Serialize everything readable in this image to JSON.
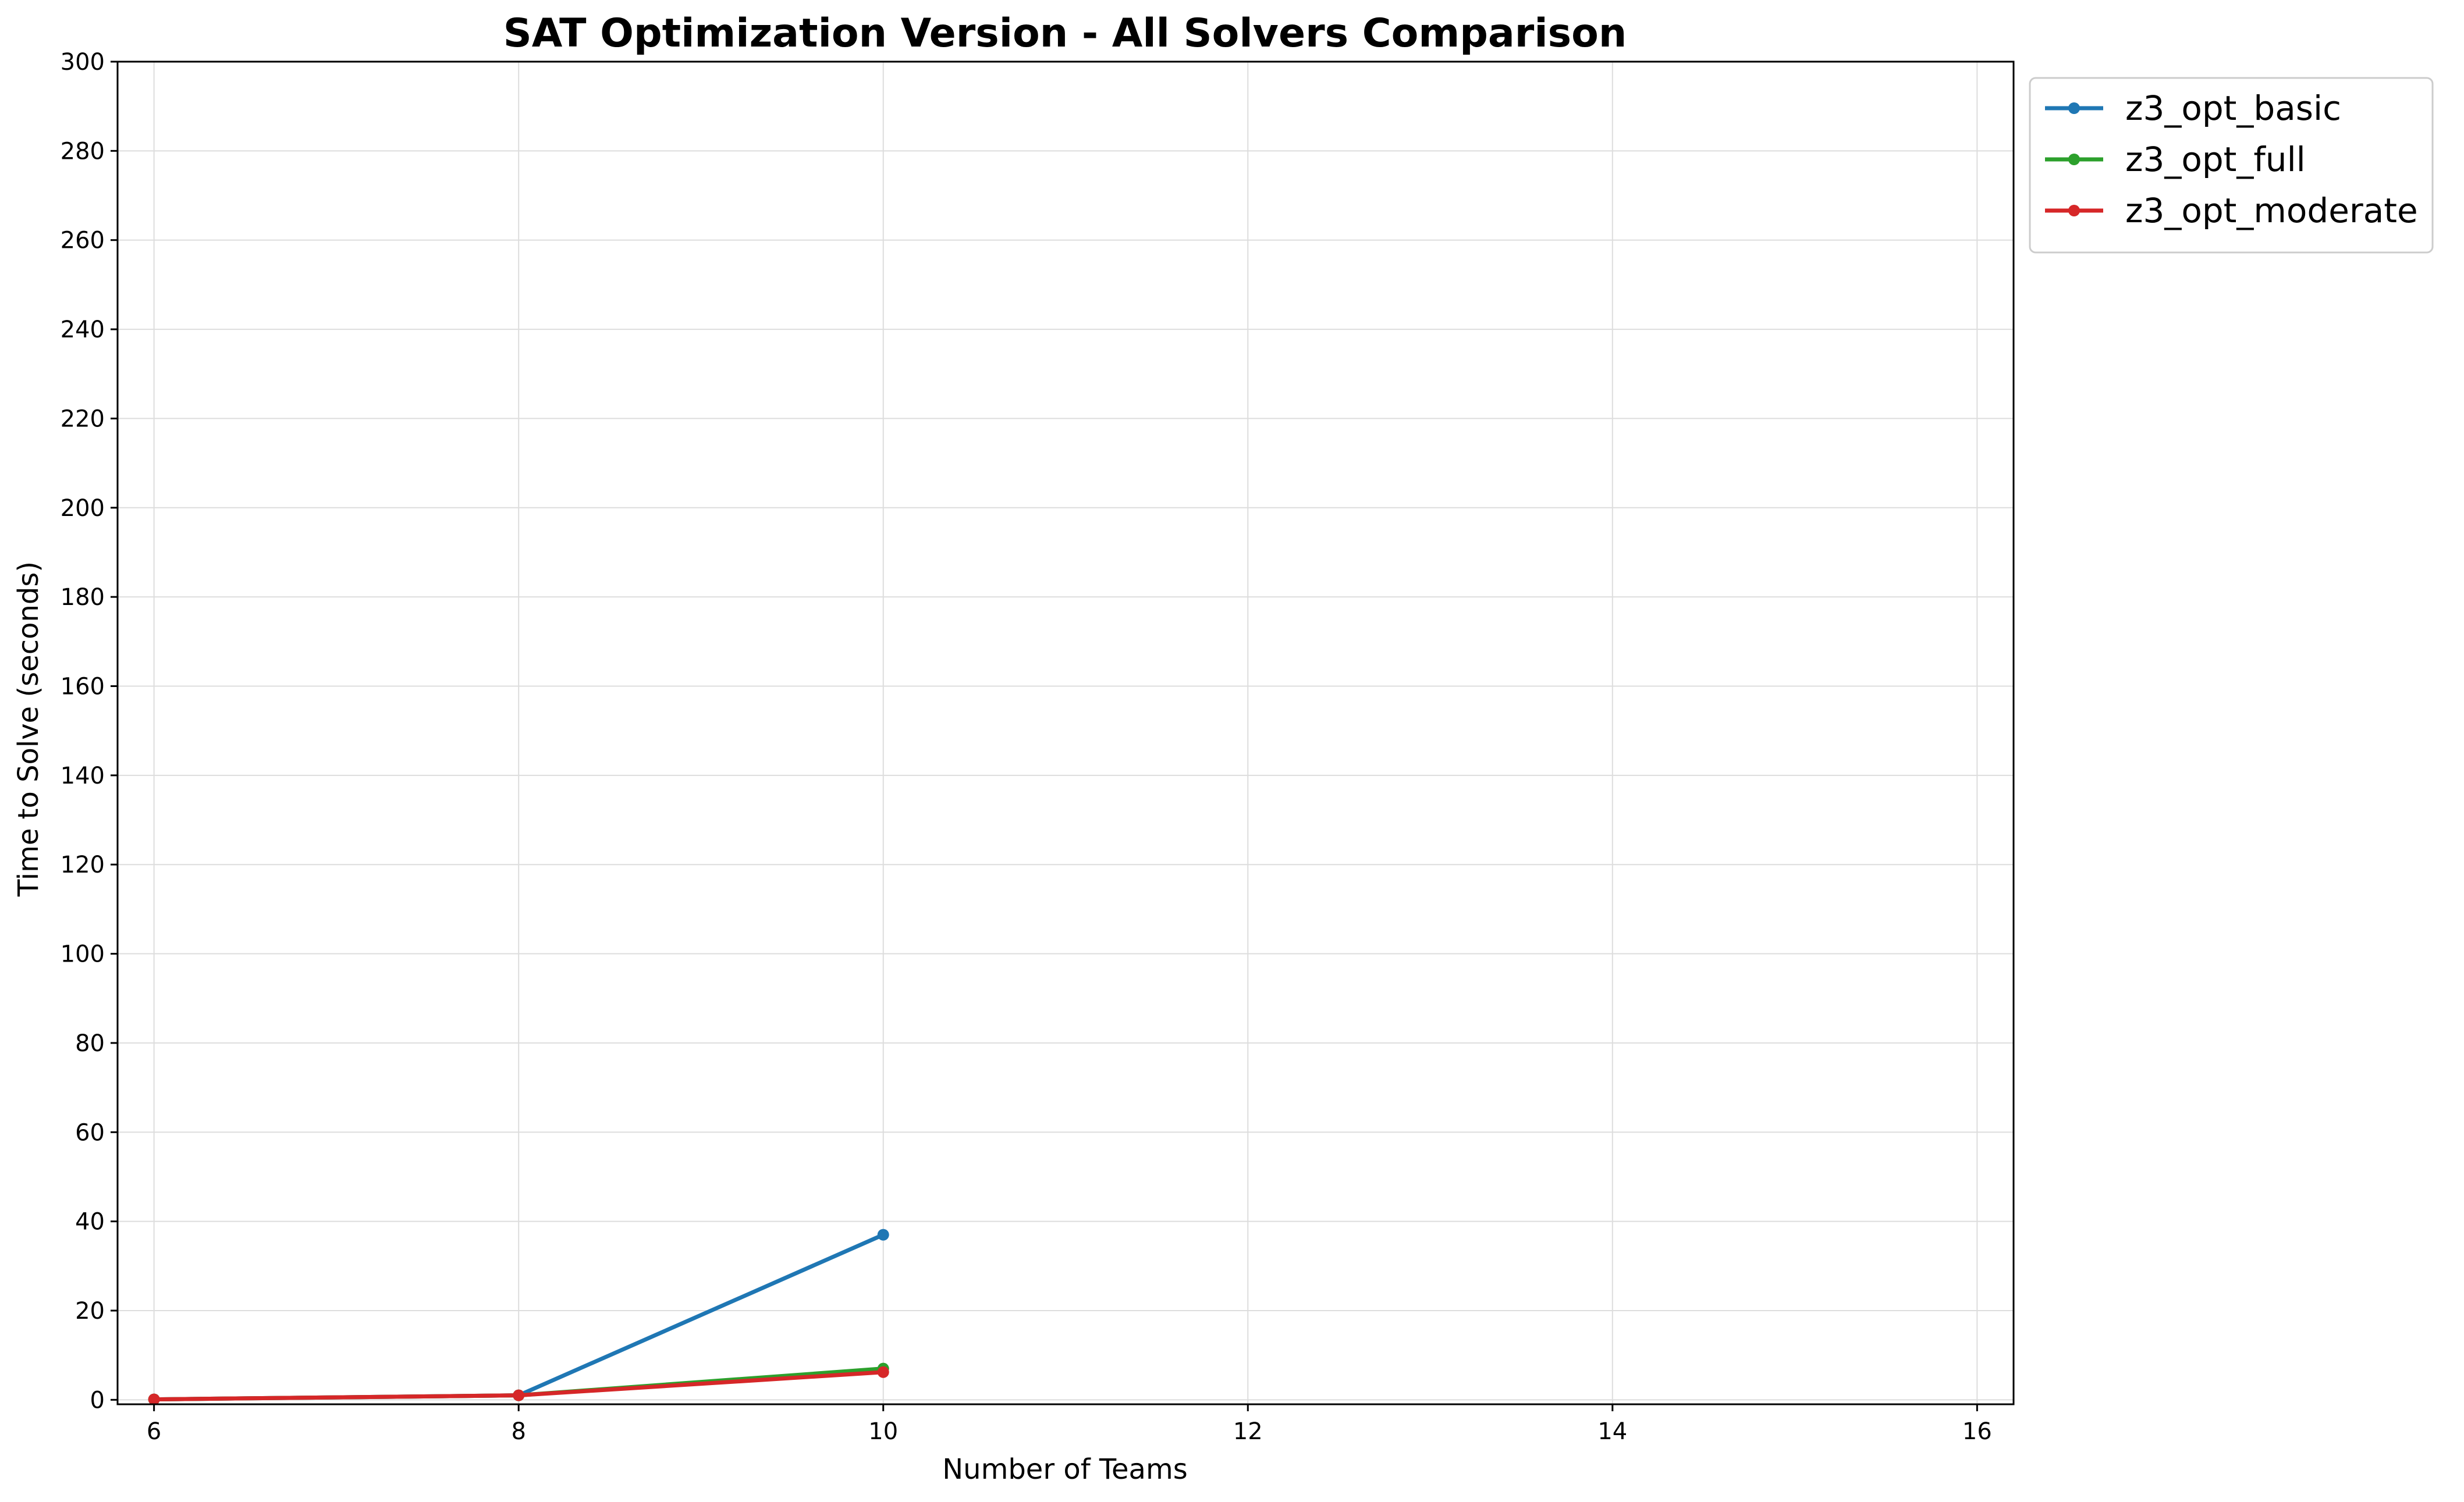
{
  "chart_data": {
    "type": "line",
    "title": "SAT Optimization Version - All Solvers Comparison",
    "xlabel": "Number of Teams",
    "ylabel": "Time to Solve (seconds)",
    "xlim": [
      5.8,
      16.2
    ],
    "ylim": [
      -1,
      300
    ],
    "x_ticks": [
      "6",
      "8",
      "10",
      "12",
      "14",
      "16"
    ],
    "y_ticks": [
      "0",
      "20",
      "40",
      "60",
      "80",
      "100",
      "120",
      "140",
      "160",
      "180",
      "200",
      "220",
      "240",
      "260",
      "280",
      "300"
    ],
    "grid": true,
    "legend_position": "outside-top-right",
    "series": [
      {
        "name": "z3_opt_basic",
        "color": "#1f77b4",
        "x": [
          6,
          8,
          10
        ],
        "y": [
          0.1,
          1.0,
          37.0
        ]
      },
      {
        "name": "z3_opt_full",
        "color": "#2ca02c",
        "x": [
          6,
          8,
          10
        ],
        "y": [
          0.1,
          1.0,
          7.0
        ]
      },
      {
        "name": "z3_opt_moderate",
        "color": "#d62728",
        "x": [
          6,
          8,
          10
        ],
        "y": [
          0.1,
          1.0,
          6.2
        ]
      }
    ]
  }
}
